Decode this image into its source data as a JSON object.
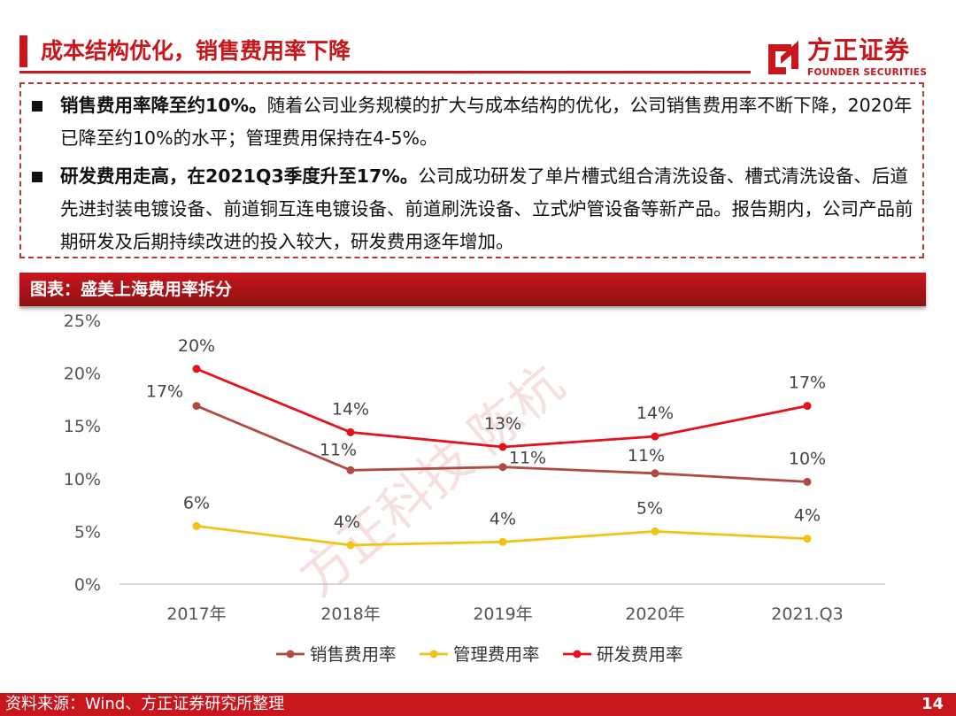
{
  "header": {
    "title": "成本结构优化，销售费用率下降",
    "logo_cn": "方正证券",
    "logo_en": "FOUNDER SECURITIES"
  },
  "bullets": [
    {
      "bold": "销售费用率降至约10%。",
      "text": "随着公司业务规模的扩大与成本结构的优化，公司销售费用率不断下降，2020年已降至约10%的水平；管理费用保持在4-5%。"
    },
    {
      "bold": "研发费用走高，在2021Q3季度升至17%。",
      "text": "公司成功研发了单片槽式组合清洗设备、槽式清洗设备、后道先进封装电镀设备、前道铜互连电镀设备、前道刷洗设备、立式炉管设备等新产品。报告期内，公司产品前期研发及后期持续改进的投入较大，研发费用逐年增加。"
    }
  ],
  "chart_header": "图表：盛美上海费用率拆分",
  "chart_data": {
    "type": "line",
    "title": "",
    "xlabel": "",
    "ylabel": "",
    "categories": [
      "2017年",
      "2018年",
      "2019年",
      "2020年",
      "2021.Q3"
    ],
    "ylim": [
      0,
      25
    ],
    "yticks": [
      "0%",
      "5%",
      "10%",
      "15%",
      "20%",
      "25%"
    ],
    "grid": false,
    "legend_position": "bottom",
    "series": [
      {
        "name": "销售费用率",
        "color": "#b04a45",
        "values": [
          16.9,
          10.8,
          11.1,
          10.5,
          9.7
        ],
        "labels": [
          "17%",
          "11%",
          "11%",
          "11%",
          "10%"
        ]
      },
      {
        "name": "管理费用率",
        "color": "#f2c314",
        "values": [
          5.5,
          3.7,
          4.0,
          5.0,
          4.3
        ],
        "labels": [
          "6%",
          "4%",
          "4%",
          "5%",
          "4%"
        ]
      },
      {
        "name": "研发费用率",
        "color": "#e3121b",
        "values": [
          20.4,
          14.4,
          13.0,
          14.0,
          16.9
        ],
        "labels": [
          "20%",
          "14%",
          "13%",
          "14%",
          "17%"
        ]
      }
    ]
  },
  "watermark": "方正科技 陈杭",
  "footer": {
    "source": "资料来源：Wind、方正证券研究所整理",
    "page": "14"
  }
}
